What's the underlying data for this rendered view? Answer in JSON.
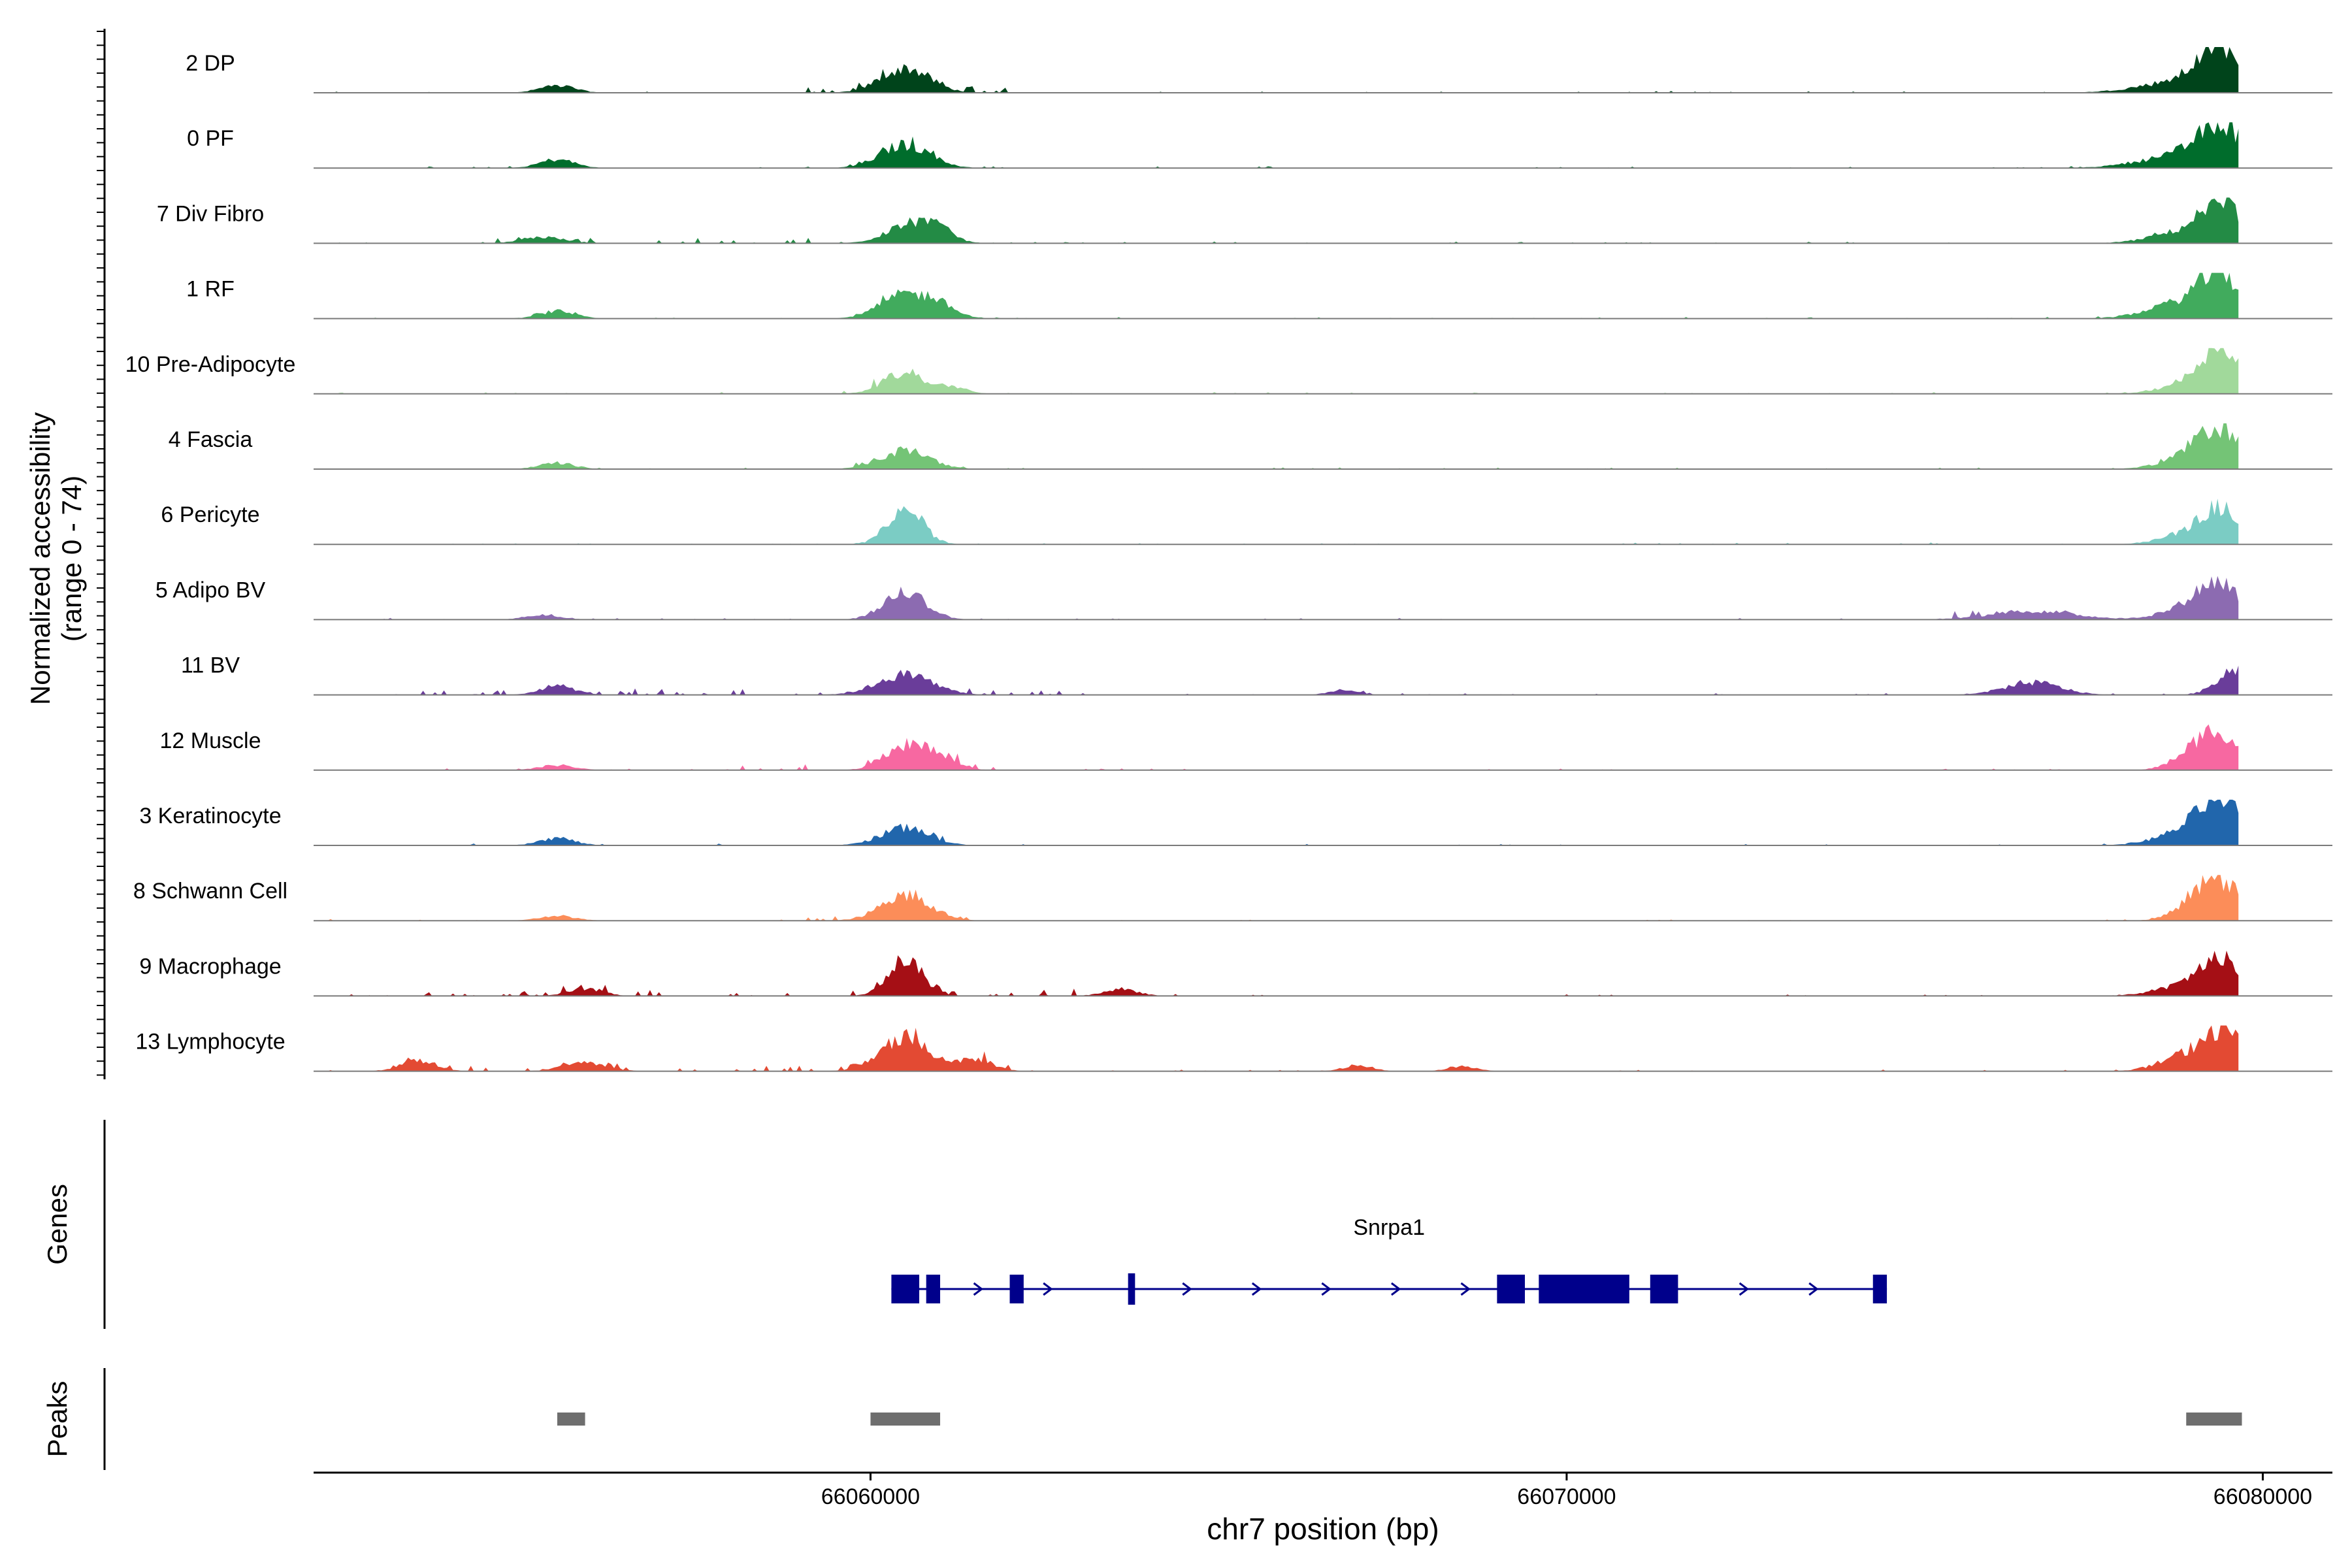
{
  "chart_data": {
    "type": "area",
    "title": "",
    "ylabel_line1": "Normalized accessibility",
    "ylabel_line2": "(range 0 - 74)",
    "xlabel": "chr7 position (bp)",
    "xlim": [
      66052000,
      66081000
    ],
    "ylim": [
      0,
      74
    ],
    "xticks": [
      66060000,
      66070000,
      66080000
    ],
    "xtick_labels": [
      "66060000",
      "66070000",
      "66080000"
    ],
    "tracks": [
      {
        "name": "2 DP",
        "color": "#00441b",
        "peaks": [
          [
            66055500,
            12,
            250
          ],
          [
            66060500,
            40,
            350
          ],
          [
            66078900,
            20,
            600
          ],
          [
            66079400,
            65,
            300
          ]
        ],
        "noise": [
          66058500,
          66062000
        ]
      },
      {
        "name": "0 PF",
        "color": "#006d2c",
        "peaks": [
          [
            66055500,
            14,
            250
          ],
          [
            66060500,
            38,
            350
          ],
          [
            66078900,
            22,
            600
          ],
          [
            66079400,
            58,
            300
          ]
        ],
        "noise": [
          66059500,
          66062000
        ]
      },
      {
        "name": "7 Div Fibro",
        "color": "#238b45",
        "peaks": [
          [
            66055300,
            10,
            300
          ],
          [
            66060600,
            32,
            350
          ],
          [
            66061000,
            12,
            200
          ],
          [
            66079000,
            22,
            500
          ],
          [
            66079400,
            62,
            250
          ]
        ],
        "noise": [
          66054500,
          66061500
        ]
      },
      {
        "name": "1 RF",
        "color": "#41ab5d",
        "peaks": [
          [
            66055500,
            12,
            250
          ],
          [
            66060500,
            38,
            350
          ],
          [
            66061000,
            15,
            250
          ],
          [
            66078900,
            25,
            500
          ],
          [
            66079400,
            60,
            300
          ]
        ],
        "noise": [
          66059500,
          66061500
        ]
      },
      {
        "name": "10 Pre-Adipocyte",
        "color": "#a1d99b",
        "peaks": [
          [
            66060500,
            35,
            300
          ],
          [
            66061200,
            10,
            200
          ],
          [
            66079000,
            20,
            400
          ],
          [
            66079400,
            72,
            250
          ]
        ],
        "noise": [
          66059500,
          66063000
        ]
      },
      {
        "name": "4 Fascia",
        "color": "#74c476",
        "peaks": [
          [
            66055500,
            10,
            250
          ],
          [
            66060500,
            30,
            350
          ],
          [
            66079000,
            22,
            400
          ],
          [
            66079400,
            55,
            300
          ]
        ],
        "noise": [
          66059500,
          66061500
        ]
      },
      {
        "name": "6 Pericyte",
        "color": "#7bccc4",
        "peaks": [
          [
            66060500,
            58,
            250
          ],
          [
            66079000,
            20,
            400
          ],
          [
            66079400,
            48,
            250
          ]
        ],
        "noise": [
          66060000,
          66061000
        ]
      },
      {
        "name": "5 Adipo BV",
        "color": "#8c6bb1",
        "peaks": [
          [
            66055300,
            8,
            250
          ],
          [
            66060500,
            45,
            300
          ],
          [
            66076700,
            14,
            600
          ],
          [
            66079000,
            22,
            400
          ],
          [
            66079400,
            48,
            300
          ]
        ],
        "noise": [
          66075500,
          66077500
        ]
      },
      {
        "name": "11 BV",
        "color": "#6a3d9a",
        "peaks": [
          [
            66055500,
            15,
            250
          ],
          [
            66060500,
            32,
            400
          ],
          [
            66066800,
            8,
            200
          ],
          [
            66076700,
            20,
            400
          ],
          [
            66079600,
            42,
            250
          ]
        ],
        "noise": [
          66053500,
          66063500
        ]
      },
      {
        "name": "12 Muscle",
        "color": "#f768a1",
        "peaks": [
          [
            66055500,
            8,
            250
          ],
          [
            66060500,
            38,
            300
          ],
          [
            66061000,
            20,
            250
          ],
          [
            66079000,
            22,
            300
          ],
          [
            66079400,
            55,
            300
          ]
        ],
        "noise": [
          66058000,
          66062000
        ]
      },
      {
        "name": "3 Keratinocyte",
        "color": "#2166ac",
        "peaks": [
          [
            66055500,
            12,
            250
          ],
          [
            66060500,
            28,
            350
          ],
          [
            66079100,
            28,
            500
          ],
          [
            66079400,
            52,
            300
          ]
        ],
        "noise": [
          66059500,
          66061500
        ]
      },
      {
        "name": "8 Schwann Cell",
        "color": "#fc8d59",
        "peaks": [
          [
            66055500,
            8,
            250
          ],
          [
            66060500,
            40,
            350
          ],
          [
            66079300,
            70,
            350
          ]
        ],
        "noise": [
          66059000,
          66061500
        ]
      },
      {
        "name": "9 Macrophage",
        "color": "#a50f15",
        "peaks": [
          [
            66055900,
            12,
            250
          ],
          [
            66060500,
            58,
            250
          ],
          [
            66063600,
            10,
            250
          ],
          [
            66078900,
            18,
            400
          ],
          [
            66079400,
            60,
            250
          ]
        ],
        "noise": [
          66053000,
          66064000
        ]
      },
      {
        "name": "13 Lymphocyte",
        "color": "#e34a33",
        "peaks": [
          [
            66053500,
            18,
            250
          ],
          [
            66055900,
            15,
            300
          ],
          [
            66060500,
            55,
            350
          ],
          [
            66061500,
            20,
            250
          ],
          [
            66067000,
            10,
            200
          ],
          [
            66068500,
            8,
            200
          ],
          [
            66079000,
            30,
            400
          ],
          [
            66079500,
            55,
            250
          ]
        ],
        "noise": [
          66053000,
          66062500
        ]
      }
    ],
    "genes_label": "Genes",
    "gene": {
      "name": "Snrpa1",
      "color": "#00008b",
      "start": 66060300,
      "end": 66074600,
      "exons": [
        [
          66060300,
          66060700
        ],
        [
          66060800,
          66061000
        ],
        [
          66062000,
          66062200
        ],
        [
          66063700,
          66063800
        ],
        [
          66069000,
          66069400
        ],
        [
          66069600,
          66070900
        ],
        [
          66071200,
          66071600
        ],
        [
          66074400,
          66074600
        ]
      ]
    },
    "peaks_label": "Peaks",
    "peak_regions": [
      [
        66055500,
        66055900
      ],
      [
        66060000,
        66061000
      ],
      [
        66078900,
        66079700
      ]
    ],
    "peak_color": "#6e6e6e"
  }
}
